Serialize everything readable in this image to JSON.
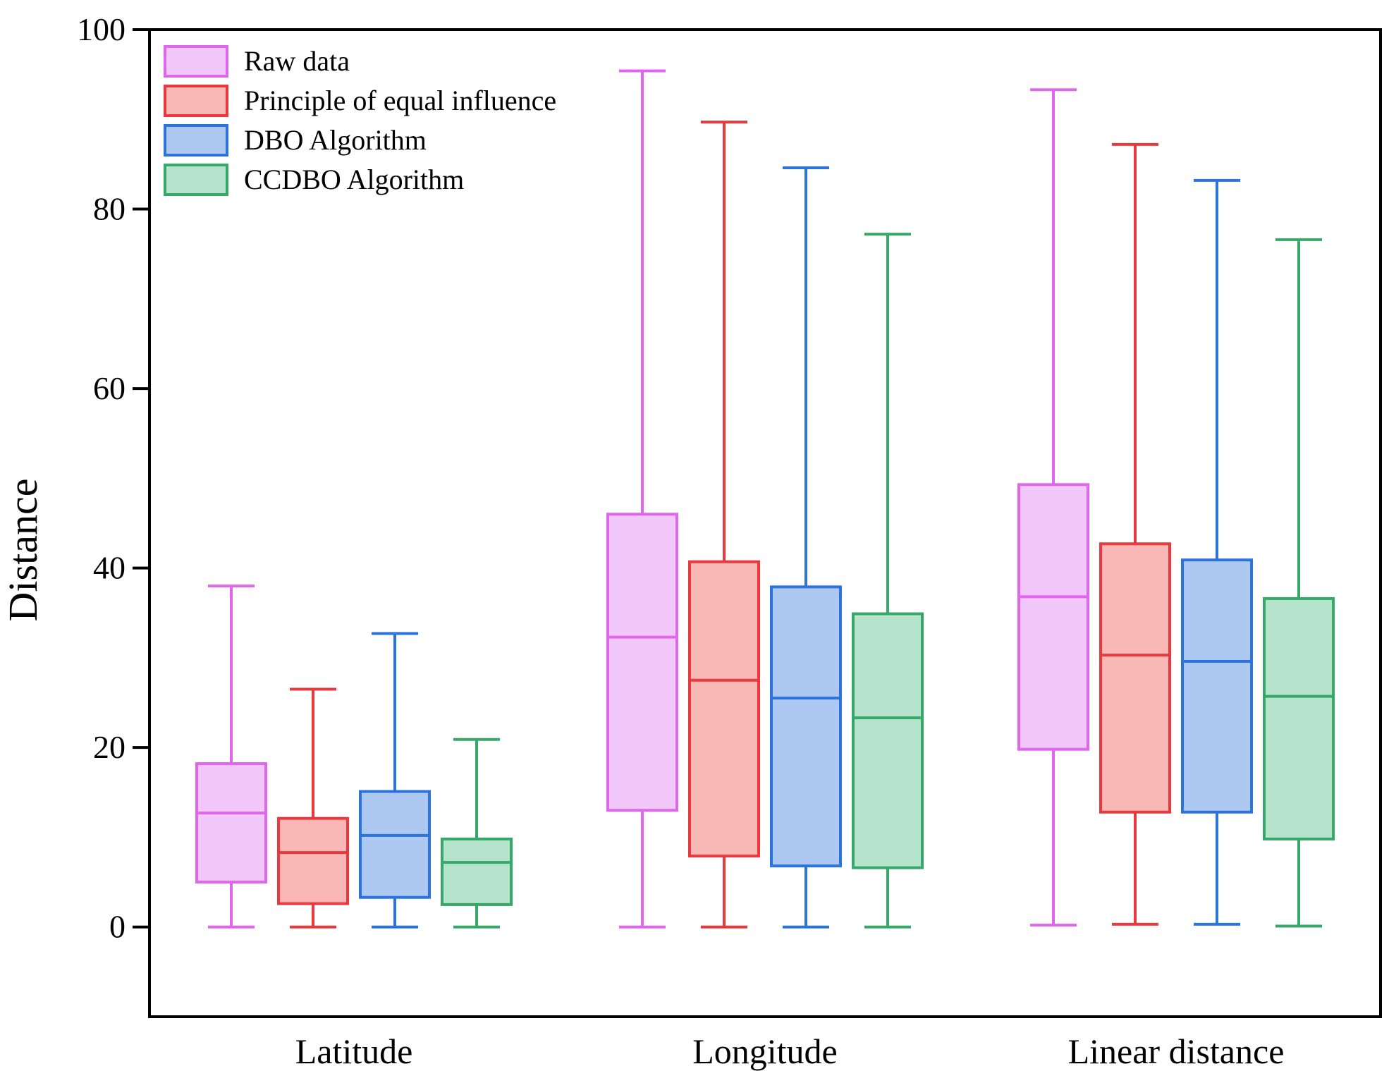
{
  "chart_data": {
    "type": "box",
    "title": "",
    "xlabel": "",
    "ylabel": "Distance",
    "ylim": [
      -10,
      100
    ],
    "yticks": [
      0,
      20,
      40,
      60,
      80,
      100
    ],
    "grid": false,
    "legend_position": "top-left",
    "categories": [
      "Latitude",
      "Longitude",
      "Linear distance"
    ],
    "series": [
      {
        "name": "Raw data",
        "stroke": "#e066ee",
        "fill": "#f2c8fa",
        "boxes": [
          {
            "min": 0,
            "q1": 5,
            "median": 12.7,
            "q3": 18.2,
            "max": 38
          },
          {
            "min": 0,
            "q1": 13,
            "median": 32.3,
            "q3": 46,
            "max": 95.4
          },
          {
            "min": 0.2,
            "q1": 19.8,
            "median": 36.8,
            "q3": 49.3,
            "max": 93.3
          }
        ]
      },
      {
        "name": "Principle of equal influence",
        "stroke": "#e83a3e",
        "fill": "#f9b8b6",
        "boxes": [
          {
            "min": 0,
            "q1": 2.6,
            "median": 8.3,
            "q3": 12.1,
            "max": 26.5
          },
          {
            "min": 0,
            "q1": 7.9,
            "median": 27.5,
            "q3": 40.7,
            "max": 89.7
          },
          {
            "min": 0.3,
            "q1": 12.8,
            "median": 30.3,
            "q3": 42.7,
            "max": 87.2
          }
        ]
      },
      {
        "name": "DBO Algorithm",
        "stroke": "#2d73dc",
        "fill": "#aec9f1",
        "boxes": [
          {
            "min": 0,
            "q1": 3.3,
            "median": 10.2,
            "q3": 15.1,
            "max": 32.7
          },
          {
            "min": 0,
            "q1": 6.8,
            "median": 25.5,
            "q3": 37.9,
            "max": 84.6
          },
          {
            "min": 0.3,
            "q1": 12.8,
            "median": 29.6,
            "q3": 40.9,
            "max": 83.2
          }
        ]
      },
      {
        "name": "CCDBO Algorithm",
        "stroke": "#35a86a",
        "fill": "#b6e3cb",
        "boxes": [
          {
            "min": 0,
            "q1": 2.5,
            "median": 7.2,
            "q3": 9.8,
            "max": 20.9
          },
          {
            "min": 0,
            "q1": 6.6,
            "median": 23.3,
            "q3": 34.9,
            "max": 77.2
          },
          {
            "min": 0.1,
            "q1": 9.8,
            "median": 25.7,
            "q3": 36.6,
            "max": 76.6
          }
        ]
      }
    ]
  }
}
